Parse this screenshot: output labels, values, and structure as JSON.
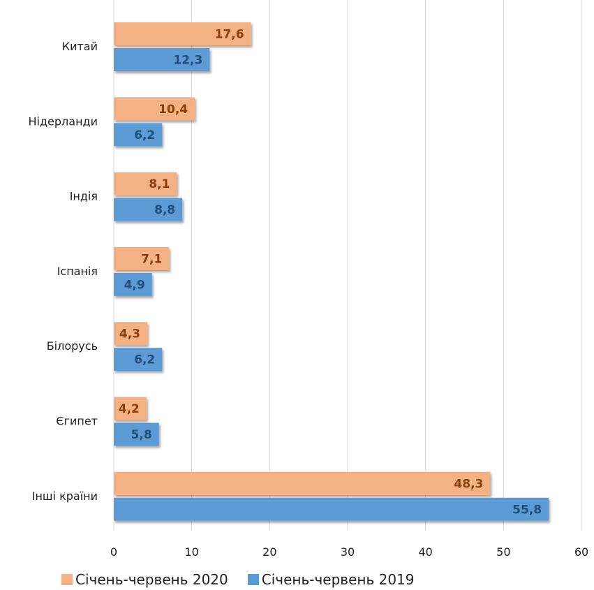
{
  "chart_data": {
    "type": "bar",
    "orientation": "horizontal",
    "categories": [
      "Китай",
      "Нідерланди",
      "Індія",
      "Іспанія",
      "Білорусь",
      "Єгипет",
      "Інші країни"
    ],
    "series": [
      {
        "name": "Січень-червень 2020",
        "values": [
          17.6,
          10.4,
          8.1,
          7.1,
          4.3,
          4.2,
          48.3
        ],
        "labels": [
          "17,6",
          "10,4",
          "8,1",
          "7,1",
          "4,3",
          "4,2",
          "48,3"
        ],
        "color": "#F4B183",
        "label_color": "#8A3F0F"
      },
      {
        "name": "Січень-червень 2019",
        "values": [
          12.3,
          6.2,
          8.8,
          4.9,
          6.2,
          5.8,
          55.8
        ],
        "labels": [
          "12,3",
          "6,2",
          "8,8",
          "4,9",
          "6,2",
          "5,8",
          "55,8"
        ],
        "color": "#5B9BD5",
        "label_color": "#1F4E79"
      }
    ],
    "xlim": [
      0,
      60
    ],
    "xticks": [
      "0",
      "10",
      "20",
      "30",
      "40",
      "50",
      "60"
    ],
    "grid": true,
    "legend_position": "bottom"
  }
}
